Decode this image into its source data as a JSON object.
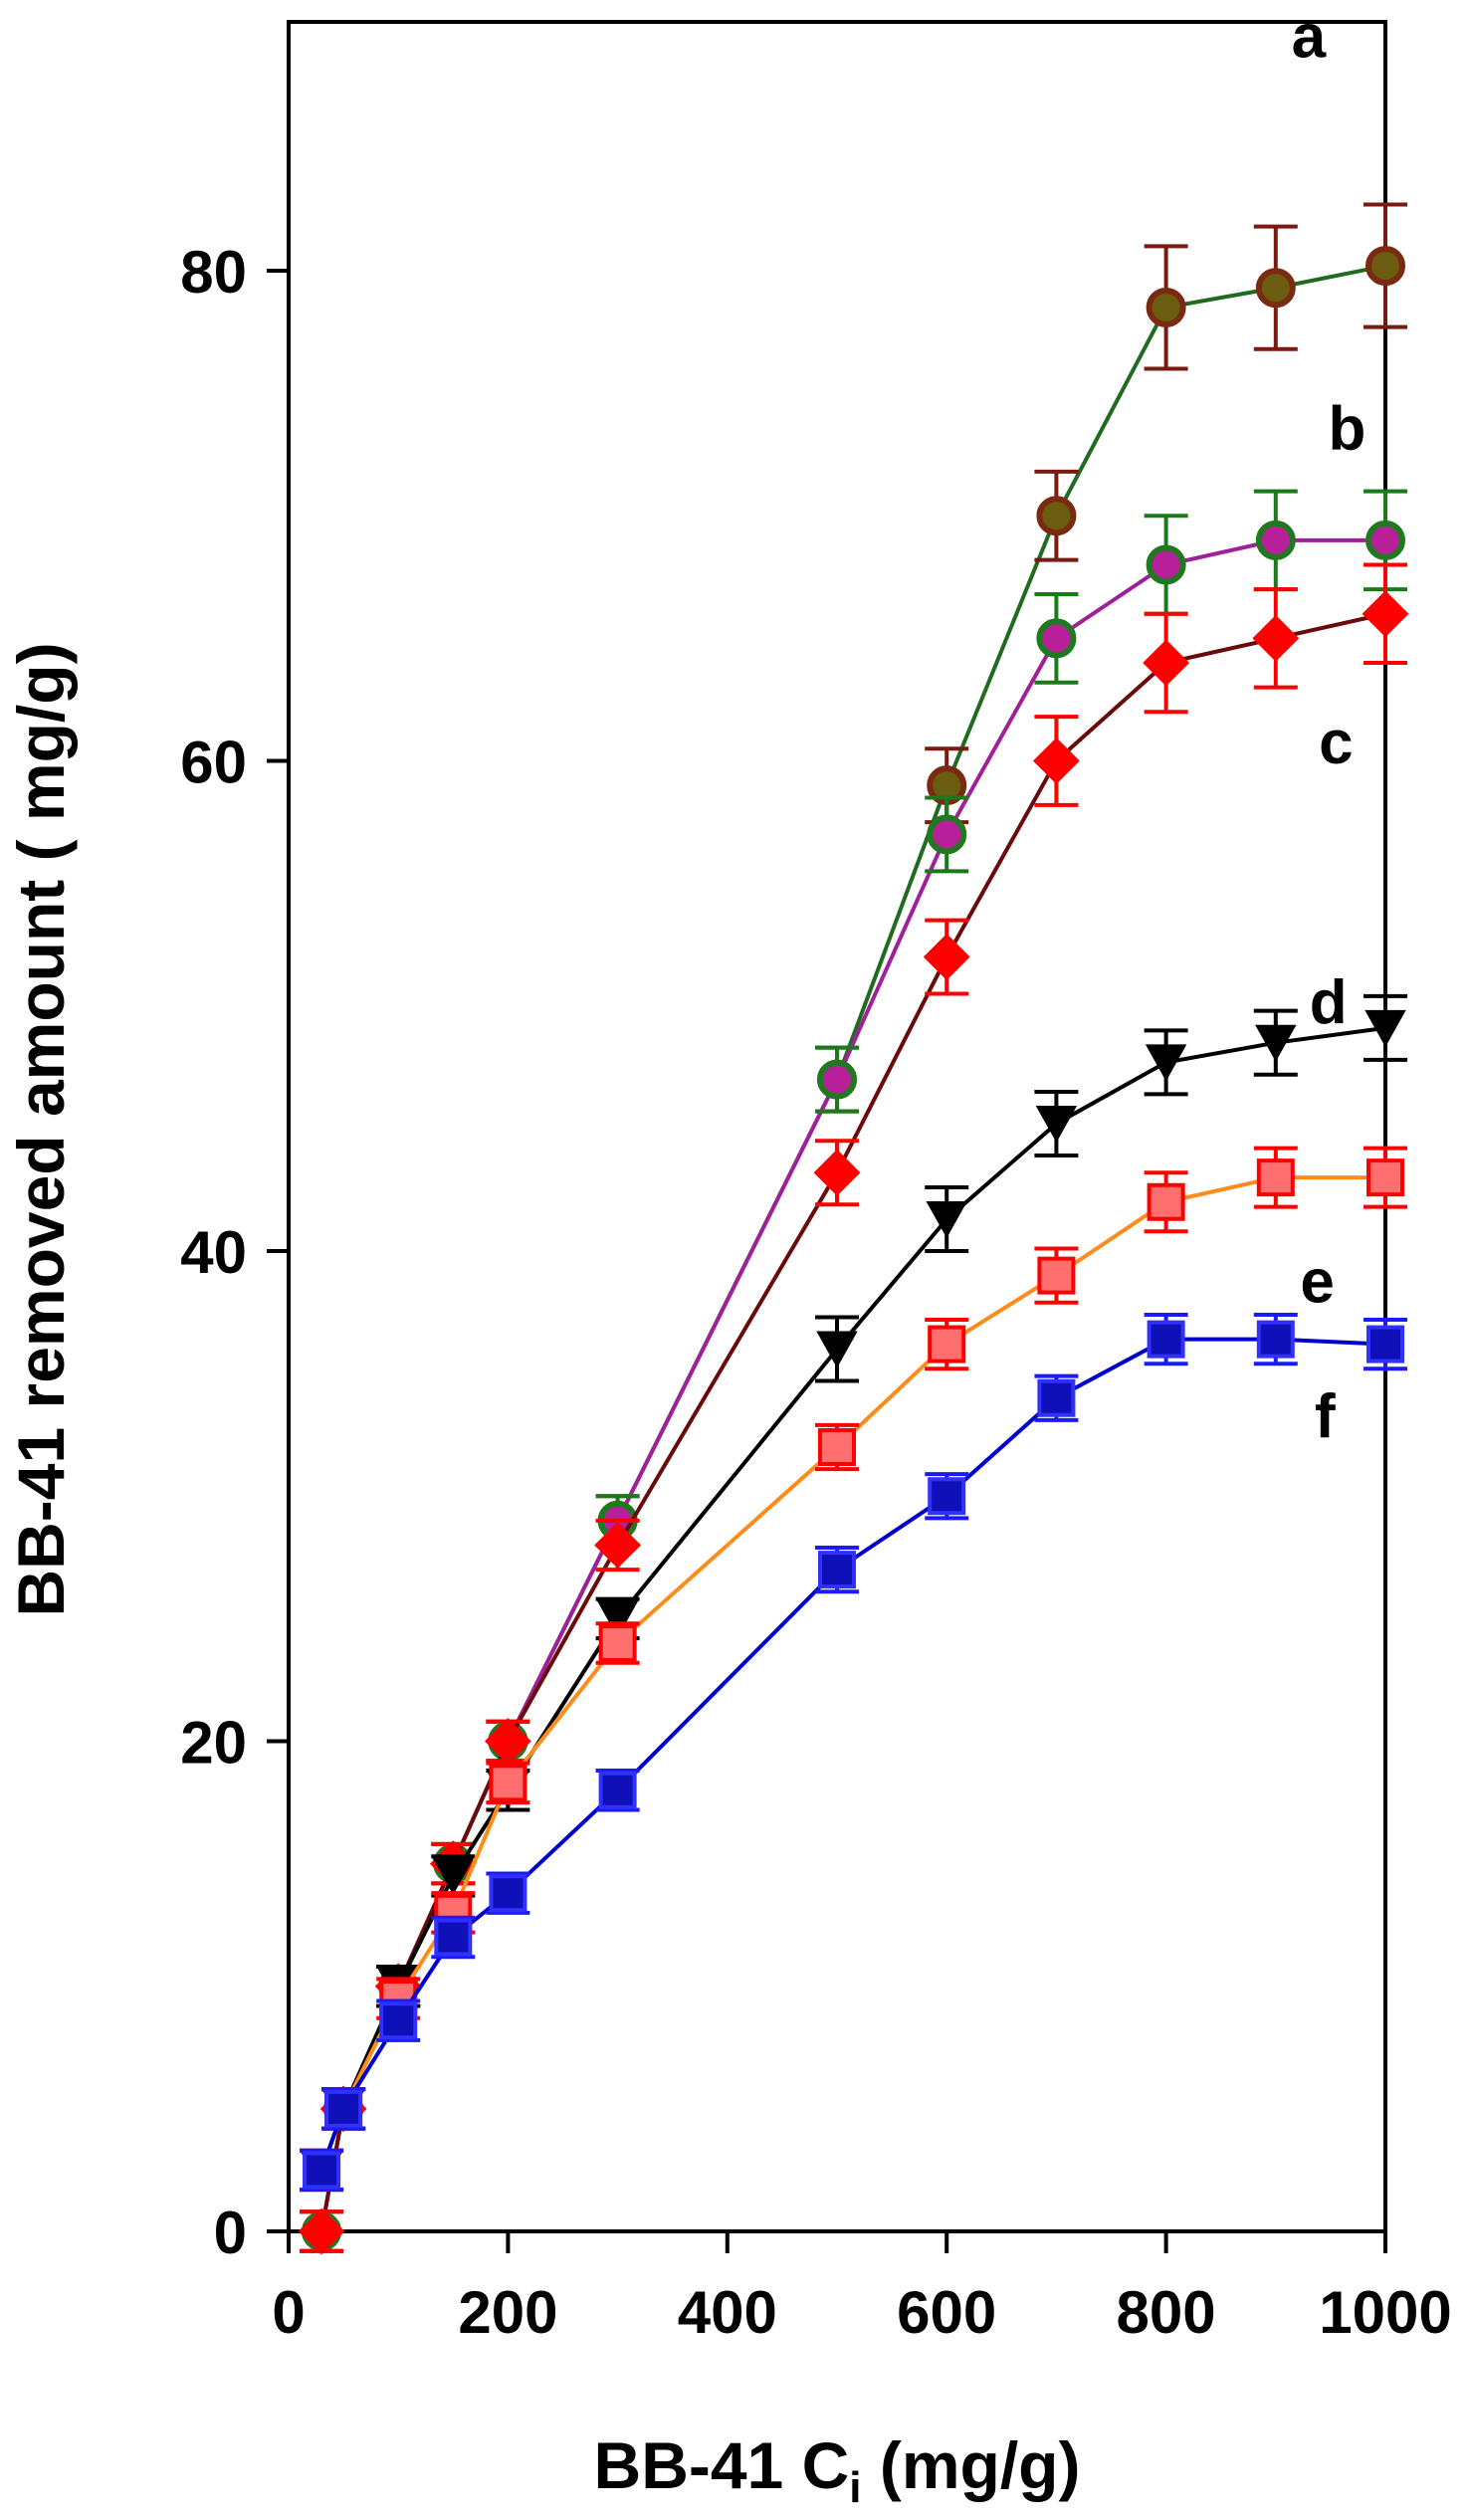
{
  "chart_data": {
    "type": "line",
    "title": "",
    "xlabel": "BB-41 C",
    "xlabel_subscript": "i",
    "xlabel_suffix": " (mg/g)",
    "ylabel": "BB-41 removed amount ( mg/g)",
    "xlim": [
      0,
      1000
    ],
    "ylim": [
      0,
      90
    ],
    "x_ticks": [
      0,
      200,
      400,
      600,
      800,
      1000
    ],
    "y_ticks": [
      0,
      20,
      40,
      60,
      80
    ],
    "grid": false,
    "legend": "inline letter labels at right",
    "series": [
      {
        "name": "a",
        "line_color": "#1f6b1f",
        "marker": "circle",
        "marker_fill": "#6b5c10",
        "marker_edge": "#7a2a10",
        "error_color": "#7a1a10",
        "x": [
          30,
          50,
          100,
          150,
          200,
          300,
          500,
          600,
          700,
          800,
          900,
          1000
        ],
        "y": [
          0,
          5,
          10,
          15,
          20,
          29,
          47,
          59,
          70,
          78.5,
          79.3,
          80.2
        ],
        "error": [
          0.8,
          0.8,
          0.8,
          0.8,
          0.8,
          1.0,
          1.3,
          1.5,
          1.8,
          2.5,
          2.5,
          2.5
        ]
      },
      {
        "name": "b",
        "line_color": "#a0209a",
        "marker": "circle",
        "marker_fill": "#b8209a",
        "marker_edge": "#1f7a1f",
        "error_color": "#1a7a1a",
        "x": [
          30,
          50,
          100,
          150,
          200,
          300,
          500,
          600,
          700,
          800,
          900,
          1000
        ],
        "y": [
          0,
          5,
          10,
          15,
          20,
          29,
          47,
          57,
          65,
          68,
          69,
          69
        ],
        "error": [
          0.8,
          0.8,
          0.8,
          0.8,
          0.8,
          1.0,
          1.3,
          1.5,
          1.8,
          2.0,
          2.0,
          2.0
        ]
      },
      {
        "name": "c",
        "line_color": "#6b0a0a",
        "marker": "diamond",
        "marker_fill": "#ff0000",
        "marker_edge": "#ff0000",
        "error_color": "#ff0000",
        "x": [
          30,
          50,
          100,
          150,
          200,
          300,
          500,
          600,
          700,
          800,
          900,
          1000
        ],
        "y": [
          0,
          5,
          10,
          15,
          20,
          28,
          43.2,
          52,
          60,
          64,
          65,
          66
        ],
        "error": [
          0.8,
          0.8,
          0.8,
          0.8,
          0.8,
          1.0,
          1.3,
          1.5,
          1.8,
          2.0,
          2.0,
          2.0
        ]
      },
      {
        "name": "d",
        "line_color": "#000000",
        "marker": "triangle-down",
        "marker_fill": "#000000",
        "marker_edge": "#000000",
        "error_color": "#000000",
        "x": [
          30,
          50,
          100,
          150,
          200,
          300,
          500,
          600,
          700,
          800,
          900,
          1000
        ],
        "y": [
          2.5,
          5,
          10,
          14.5,
          18,
          25,
          36,
          41.3,
          45.2,
          47.7,
          48.5,
          49.1
        ],
        "error": [
          0.8,
          0.8,
          0.8,
          0.8,
          0.8,
          0.8,
          1.3,
          1.3,
          1.3,
          1.3,
          1.3,
          1.3
        ]
      },
      {
        "name": "e",
        "line_color": "#ff8c1a",
        "marker": "square",
        "marker_fill": "#ff6f6f",
        "marker_edge": "#ff0000",
        "error_color": "#ff0000",
        "x": [
          30,
          50,
          100,
          150,
          200,
          300,
          500,
          600,
          700,
          800,
          900,
          1000
        ],
        "y": [
          2.5,
          5,
          9.5,
          13,
          18.3,
          24,
          32,
          36.2,
          39,
          42,
          43,
          43
        ],
        "error": [
          0.8,
          0.8,
          0.8,
          0.8,
          0.8,
          0.8,
          0.9,
          1.0,
          1.1,
          1.2,
          1.2,
          1.2
        ]
      },
      {
        "name": "f",
        "line_color": "#0000cc",
        "marker": "square",
        "marker_fill": "#1010b8",
        "marker_edge": "#3030ff",
        "error_color": "#1a1aff",
        "x": [
          30,
          50,
          100,
          150,
          200,
          300,
          500,
          600,
          700,
          800,
          900,
          1000
        ],
        "y": [
          2.5,
          5,
          8.6,
          12,
          13.8,
          18,
          27,
          30,
          34,
          36.4,
          36.4,
          36.2
        ],
        "error": [
          0.8,
          0.8,
          0.8,
          0.8,
          0.8,
          0.8,
          0.9,
          0.9,
          0.9,
          1.0,
          1.0,
          1.0
        ]
      }
    ],
    "annotations": [
      {
        "text": "a",
        "x": 930,
        "y": 89.6
      },
      {
        "text": "b",
        "x": 965,
        "y": 73.6
      },
      {
        "text": "c",
        "x": 955,
        "y": 60.8
      },
      {
        "text": "d",
        "x": 948,
        "y": 50.2
      },
      {
        "text": "e",
        "x": 938,
        "y": 38.8
      },
      {
        "text": "f",
        "x": 945,
        "y": 33.3
      }
    ]
  }
}
